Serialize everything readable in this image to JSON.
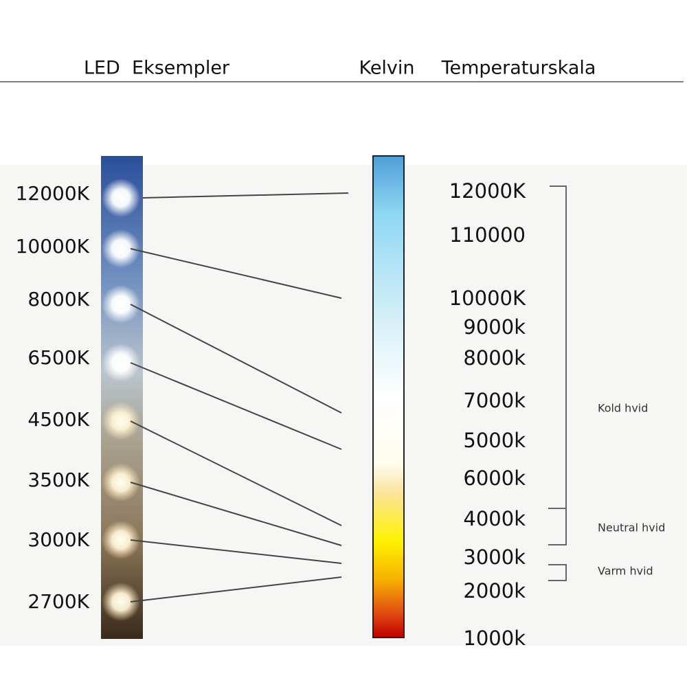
{
  "headers": {
    "led": "LED  Eksempler",
    "kelvin": "Kelvin",
    "scale": "Temperaturskala"
  },
  "led_labels": [
    "12000K",
    "10000K",
    "8000K",
    "6500K",
    "4500K",
    "3500K",
    "3000K",
    "2700K"
  ],
  "scale_labels": [
    "12000K",
    "110000",
    "10000K",
    "9000k",
    "8000k",
    "7000k",
    "5000k",
    "6000k",
    "4000k",
    "3000k",
    "2000k",
    "1000k"
  ],
  "ranges": [
    "Kold hvid",
    "Neutral hvid",
    "Varm hvid"
  ]
}
